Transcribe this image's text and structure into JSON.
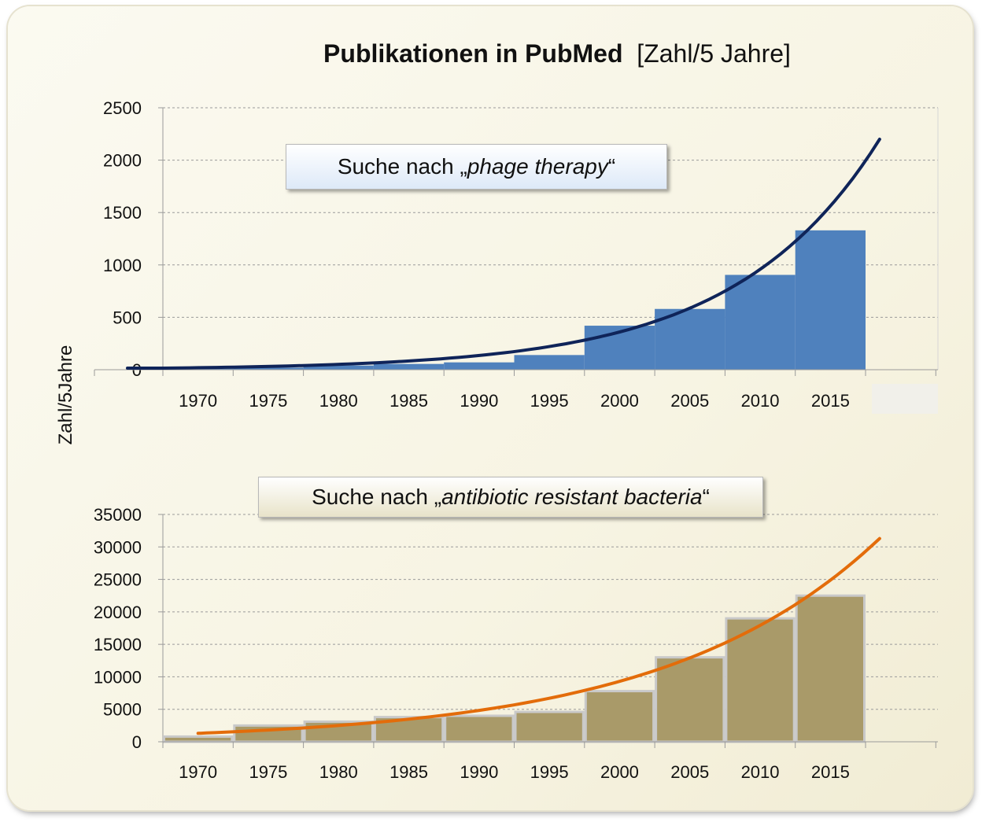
{
  "title": {
    "bold": "Publikationen  in PubMed",
    "unit": "[Zahl/5 Jahre]"
  },
  "ylabel": "Zahl/5Jahre",
  "callouts": [
    {
      "prefix": "Suche nach „",
      "term": "phage therapy",
      "suffix": "“"
    },
    {
      "prefix": "Suche nach „",
      "term": "antibiotic resistant bacteria",
      "suffix": "“"
    }
  ],
  "colors": {
    "top_bars": "#4f81bd",
    "top_curve": "#0f2459",
    "bottom_bars": "#a99a69",
    "bottom_bar_edge": "#c9c9c9",
    "bottom_curve": "#e36c0a",
    "grid": "#9a9a9a"
  },
  "chart_data": [
    {
      "type": "bar",
      "title": "Suche nach „phage therapy“",
      "categories": [
        "1970",
        "1975",
        "1980",
        "1985",
        "1990",
        "1995",
        "2000",
        "2005",
        "2010",
        "2015"
      ],
      "values": [
        10,
        20,
        40,
        55,
        70,
        140,
        420,
        580,
        905,
        1330
      ],
      "yticks": [
        0,
        500,
        1000,
        1500,
        2000,
        2500
      ],
      "ylim": [
        0,
        2500
      ],
      "grid": true,
      "trendline": {
        "type": "exponential",
        "x": [
          0,
          10.2
        ],
        "y_start": 15,
        "y_end": 2200
      }
    },
    {
      "type": "bar",
      "title": "Suche nach „antibiotic resistant bacteria“",
      "categories": [
        "1970",
        "1975",
        "1980",
        "1985",
        "1990",
        "1995",
        "2000",
        "2005",
        "2010",
        "2015"
      ],
      "values": [
        800,
        2500,
        3100,
        3800,
        4000,
        4600,
        7800,
        13000,
        19000,
        22500
      ],
      "yticks": [
        0,
        5000,
        10000,
        15000,
        20000,
        25000,
        30000,
        35000
      ],
      "ylim": [
        0,
        35000
      ],
      "grid": true,
      "trendline": {
        "type": "exponential",
        "x": [
          0.5,
          10.2
        ],
        "y_start": 1300,
        "y_end": 31300
      }
    }
  ]
}
